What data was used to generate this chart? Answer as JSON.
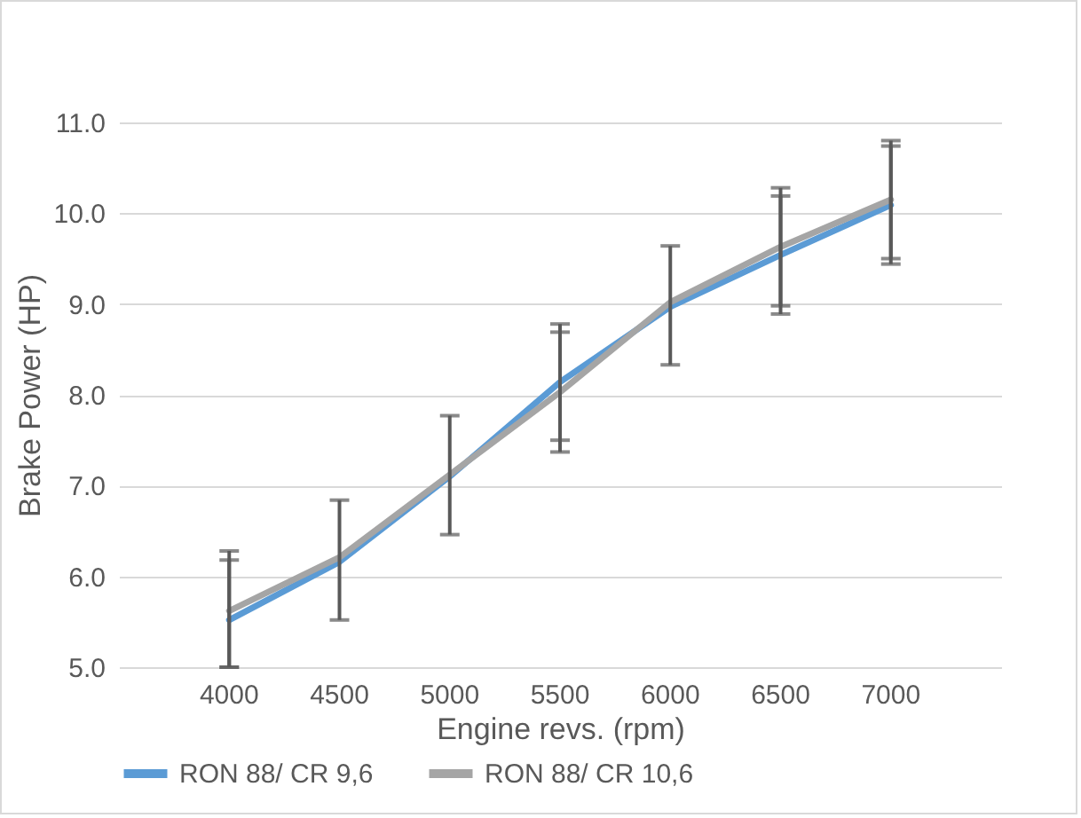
{
  "chart_data": {
    "type": "line",
    "xlabel": "Engine revs. (rpm)",
    "ylabel": "Brake Power (HP)",
    "categories": [
      "4000",
      "4500",
      "5000",
      "5500",
      "6000",
      "6500",
      "7000"
    ],
    "series": [
      {
        "name": "RON 88/ CR 9,6",
        "color": "#5b9bd5",
        "values": [
          5.52,
          6.16,
          7.1,
          8.14,
          8.97,
          9.54,
          10.09
        ],
        "errors": [
          [
            5.0,
            6.18
          ],
          null,
          null,
          0.64,
          null,
          0.65,
          0.65
        ]
      },
      {
        "name": "RON 88/ CR 10,6",
        "color": "#a5a5a5",
        "values": [
          5.62,
          6.21,
          7.12,
          8.03,
          9.02,
          9.63,
          10.15
        ],
        "errors": [
          [
            5.0,
            6.28
          ],
          [
            5.52,
            6.84
          ],
          [
            6.46,
            7.77
          ],
          0.66,
          [
            8.33,
            9.64
          ],
          0.65,
          0.65
        ]
      }
    ],
    "ylim": [
      5,
      11
    ],
    "yticks": [
      {
        "value": 5,
        "label": "5.0"
      },
      {
        "value": 6,
        "label": "6.0"
      },
      {
        "value": 7,
        "label": "7.0"
      },
      {
        "value": 8,
        "label": "8.0"
      },
      {
        "value": 9,
        "label": "9.0"
      },
      {
        "value": 10,
        "label": "10.0"
      },
      {
        "value": 11,
        "label": "11.0"
      }
    ],
    "grid": "y",
    "legend": "bottom",
    "marker": "none",
    "line_style": "solid"
  }
}
